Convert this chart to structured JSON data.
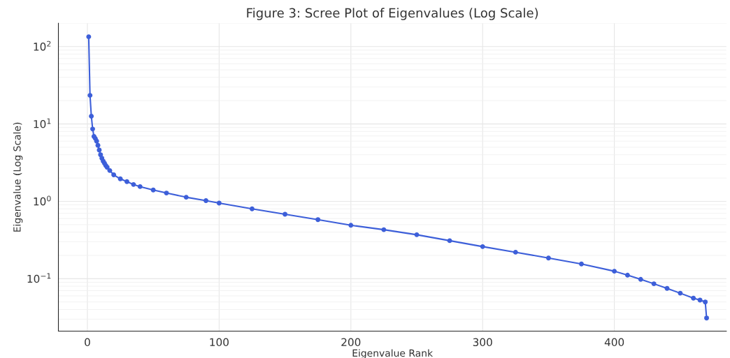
{
  "chart_data": {
    "type": "line",
    "title": "Figure 3: Scree Plot of Eigenvalues (Log Scale)",
    "xlabel": "Eigenvalue Rank",
    "ylabel": "Eigenvalue (Log Scale)",
    "x": [
      1,
      2,
      3,
      4,
      5,
      6,
      7,
      8,
      9,
      10,
      11,
      12,
      13,
      14,
      15,
      17,
      20,
      25,
      30,
      35,
      40,
      50,
      60,
      75,
      90,
      100,
      125,
      150,
      175,
      200,
      225,
      250,
      275,
      300,
      325,
      350,
      375,
      400,
      410,
      420,
      430,
      440,
      450,
      460,
      465,
      469,
      470
    ],
    "series": [
      {
        "color": "#3d5fd9",
        "values": [
          134,
          23.4,
          12.6,
          8.6,
          6.9,
          6.5,
          6.0,
          5.3,
          4.6,
          4.0,
          3.6,
          3.3,
          3.1,
          2.9,
          2.75,
          2.5,
          2.2,
          1.95,
          1.8,
          1.65,
          1.55,
          1.4,
          1.28,
          1.13,
          1.02,
          0.95,
          0.8,
          0.68,
          0.58,
          0.49,
          0.43,
          0.37,
          0.31,
          0.26,
          0.22,
          0.185,
          0.155,
          0.125,
          0.111,
          0.098,
          0.086,
          0.075,
          0.065,
          0.056,
          0.053,
          0.05,
          0.031
        ]
      }
    ],
    "log": "y",
    "xlim": [
      -22,
      485
    ],
    "ylim": [
      0.021,
      200
    ],
    "xticks": [
      0,
      100,
      200,
      300,
      400
    ],
    "yticks": [
      {
        "value": 0.1,
        "label": "10$^{−1}$"
      },
      {
        "value": 1,
        "label": "10$^{0}$"
      },
      {
        "value": 10,
        "label": "10$^{1}$"
      },
      {
        "value": 100,
        "label": "10$^{2}$"
      }
    ],
    "grid": true,
    "marker": "circle",
    "line_style": "solid"
  }
}
